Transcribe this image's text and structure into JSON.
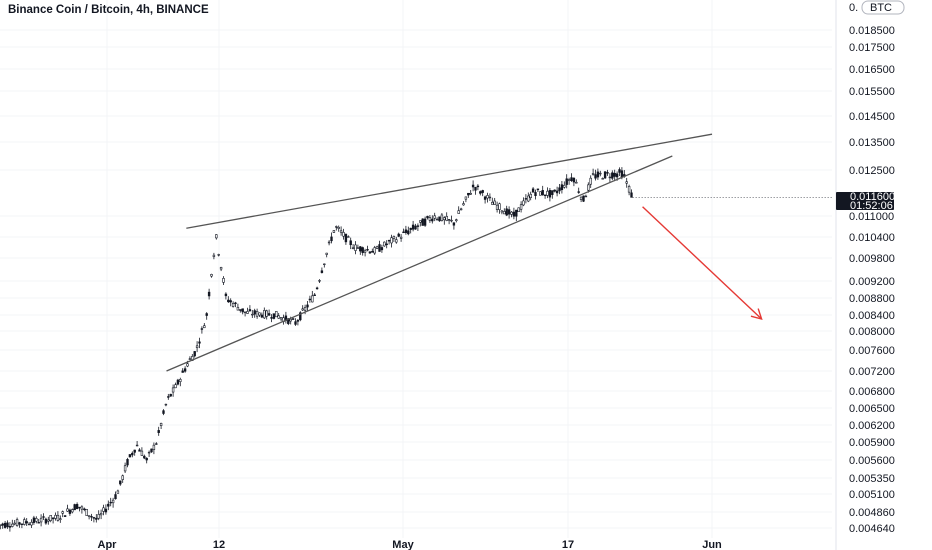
{
  "chart_data": {
    "type": "candlestick",
    "title": "Binance Coin / Bitcoin, 4h, BINANCE",
    "currency_badge": "BTC",
    "y_ticks": [
      "0.018500",
      "0.017500",
      "0.016500",
      "0.015500",
      "0.014500",
      "0.013500",
      "0.012500",
      "0.011000",
      "0.010400",
      "0.009800",
      "0.009200",
      "0.008800",
      "0.008400",
      "0.008000",
      "0.007600",
      "0.007200",
      "0.006800",
      "0.006500",
      "0.006200",
      "0.005900",
      "0.005600",
      "0.005350",
      "0.005100",
      "0.004860",
      "0.004640"
    ],
    "x_ticks": [
      "Apr",
      "12",
      "May",
      "17",
      "Jun"
    ],
    "last_price": "0.011600",
    "countdown": "01:52:06",
    "grid": true,
    "colors": {
      "up": "#131722",
      "down": "#131722",
      "trendline": "#555555",
      "arrow": "#e53935",
      "price_badge": "#131722",
      "grid": "#f0f3fa"
    },
    "price_path": [
      [
        "2021-03-21",
        0.00468
      ],
      [
        "2021-03-24",
        0.00472
      ],
      [
        "2021-03-27",
        0.00478
      ],
      [
        "2021-03-29",
        0.00495
      ],
      [
        "2021-03-31",
        0.00475
      ],
      [
        "2021-04-02",
        0.0051
      ],
      [
        "2021-04-03",
        0.00555
      ],
      [
        "2021-04-04",
        0.00585
      ],
      [
        "2021-04-05",
        0.0056
      ],
      [
        "2021-04-06",
        0.0059
      ],
      [
        "2021-04-07",
        0.0066
      ],
      [
        "2021-04-08",
        0.0069
      ],
      [
        "2021-04-09",
        0.0073
      ],
      [
        "2021-04-10",
        0.0076
      ],
      [
        "2021-04-11",
        0.0083
      ],
      [
        "2021-04-12",
        0.0104
      ],
      [
        "2021-04-13",
        0.0088
      ],
      [
        "2021-04-15",
        0.00845
      ],
      [
        "2021-04-18",
        0.0084
      ],
      [
        "2021-04-20",
        0.0082
      ],
      [
        "2021-04-22",
        0.0089
      ],
      [
        "2021-04-24",
        0.0107
      ],
      [
        "2021-04-26",
        0.0101
      ],
      [
        "2021-04-28",
        0.01
      ],
      [
        "2021-05-01",
        0.0105
      ],
      [
        "2021-05-04",
        0.011
      ],
      [
        "2021-05-06",
        0.0108
      ],
      [
        "2021-05-08",
        0.012
      ],
      [
        "2021-05-10",
        0.0114
      ],
      [
        "2021-05-12",
        0.011
      ],
      [
        "2021-05-14",
        0.0118
      ],
      [
        "2021-05-16",
        0.0117
      ],
      [
        "2021-05-18",
        0.0123
      ],
      [
        "2021-05-19",
        0.0115
      ],
      [
        "2021-05-20",
        0.0123
      ],
      [
        "2021-05-23",
        0.0124
      ],
      [
        "2021-05-24",
        0.0116
      ]
    ],
    "trendlines": [
      {
        "name": "upper",
        "from": [
          "2021-04-09",
          0.01065
        ],
        "to": [
          "2021-06-01",
          0.0138
        ]
      },
      {
        "name": "lower",
        "from": [
          "2021-04-07",
          0.0072
        ],
        "to": [
          "2021-05-28",
          0.013
        ]
      }
    ],
    "projection_arrow": {
      "from": [
        "2021-05-25",
        0.0113
      ],
      "to": [
        "2021-06-06",
        0.0083
      ]
    }
  }
}
